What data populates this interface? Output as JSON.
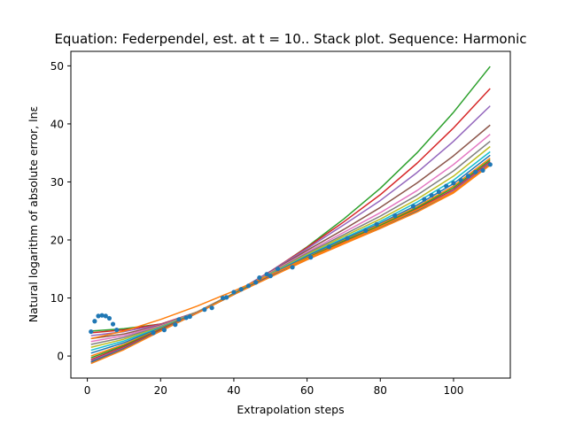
{
  "chart_data": {
    "type": "line",
    "title": "Equation: Federpendel, est. at t = 10.. Stack plot. Sequence: Harmonic",
    "xlabel": "Extrapolation steps",
    "ylabel": "Natural logarithm of absolute error, lnε",
    "xlim": [
      -4.5,
      115.5
    ],
    "ylim": [
      -3.8,
      52.5
    ],
    "xticks": [
      0,
      20,
      40,
      60,
      80,
      100
    ],
    "yticks": [
      0,
      10,
      20,
      30,
      40,
      50
    ],
    "grid": false,
    "legend": "none",
    "scatter": {
      "color": "#1f77b4",
      "x": [
        1,
        2,
        3,
        4,
        5,
        6,
        7,
        8,
        18,
        21,
        24,
        25,
        27,
        28,
        32,
        34,
        37,
        38,
        40,
        42,
        44,
        46,
        47,
        49,
        50,
        52,
        56,
        61,
        66,
        71,
        76,
        79,
        84,
        89,
        92,
        94,
        96,
        98,
        100,
        102,
        104,
        106,
        108,
        110
      ],
      "y": [
        4.2,
        6.0,
        6.9,
        7.0,
        6.9,
        6.5,
        5.5,
        4.5,
        4.0,
        4.5,
        5.4,
        6.3,
        6.6,
        6.8,
        8.0,
        8.3,
        10.0,
        10.1,
        11.0,
        11.5,
        12.1,
        12.7,
        13.5,
        14.1,
        13.8,
        15.0,
        15.3,
        17.0,
        18.8,
        20.3,
        21.6,
        22.7,
        24.2,
        25.8,
        27.0,
        27.7,
        28.3,
        29.3,
        29.8,
        30.3,
        31.0,
        31.7,
        32.0,
        33.0
      ]
    },
    "series": [
      {
        "color": "#2ca02c",
        "x": [
          1,
          10,
          20,
          30,
          40,
          50,
          60,
          70,
          80,
          90,
          100,
          110
        ],
        "y": [
          4.3,
          4.7,
          5.5,
          7.4,
          10.6,
          14.5,
          18.8,
          23.6,
          28.9,
          35.0,
          42.0,
          49.9
        ]
      },
      {
        "color": "#d62728",
        "x": [
          1,
          10,
          20,
          30,
          40,
          50,
          60,
          70,
          80,
          90,
          100,
          110
        ],
        "y": [
          4.0,
          4.5,
          5.5,
          7.6,
          10.8,
          14.6,
          18.7,
          23.1,
          27.8,
          33.2,
          39.3,
          46.1
        ]
      },
      {
        "color": "#9467bd",
        "x": [
          1,
          10,
          20,
          30,
          40,
          50,
          60,
          70,
          80,
          90,
          100,
          110
        ],
        "y": [
          3.5,
          4.2,
          5.4,
          7.6,
          10.8,
          14.6,
          18.5,
          22.6,
          26.8,
          31.6,
          37.0,
          43.1
        ]
      },
      {
        "color": "#8c564b",
        "x": [
          1,
          10,
          20,
          30,
          40,
          50,
          60,
          70,
          80,
          90,
          100,
          110
        ],
        "y": [
          3.0,
          3.8,
          5.3,
          7.6,
          10.8,
          14.5,
          18.2,
          21.8,
          25.6,
          29.8,
          34.5,
          39.8
        ]
      },
      {
        "color": "#e377c2",
        "x": [
          1,
          10,
          20,
          30,
          40,
          50,
          60,
          70,
          80,
          90,
          100,
          110
        ],
        "y": [
          2.5,
          3.5,
          5.2,
          7.6,
          10.8,
          14.4,
          17.9,
          21.3,
          24.7,
          28.5,
          33.0,
          38.2
        ]
      },
      {
        "color": "#7f7f7f",
        "x": [
          1,
          10,
          20,
          30,
          40,
          50,
          60,
          70,
          80,
          90,
          100,
          110
        ],
        "y": [
          2.0,
          3.2,
          5.1,
          7.6,
          10.8,
          14.3,
          17.7,
          20.9,
          24.1,
          27.7,
          31.9,
          37.0
        ]
      },
      {
        "color": "#bcbd22",
        "x": [
          1,
          10,
          20,
          30,
          40,
          50,
          60,
          70,
          80,
          90,
          100,
          110
        ],
        "y": [
          1.5,
          2.9,
          5.0,
          7.6,
          10.7,
          14.2,
          17.5,
          20.6,
          23.6,
          27.0,
          31.0,
          36.1
        ]
      },
      {
        "color": "#17becf",
        "x": [
          1,
          10,
          20,
          30,
          40,
          50,
          60,
          70,
          80,
          90,
          100,
          110
        ],
        "y": [
          1.0,
          2.6,
          4.9,
          7.5,
          10.7,
          14.1,
          17.3,
          20.3,
          23.2,
          26.5,
          30.3,
          35.2
        ]
      },
      {
        "color": "#1f77b4",
        "x": [
          1,
          10,
          20,
          30,
          40,
          50,
          60,
          70,
          80,
          90,
          100,
          110
        ],
        "y": [
          0.5,
          2.3,
          4.8,
          7.5,
          10.7,
          14.0,
          17.2,
          20.1,
          22.9,
          26.0,
          29.7,
          34.6
        ]
      },
      {
        "color": "#ff7f0e",
        "x": [
          1,
          10,
          20,
          30,
          40,
          50,
          60,
          70,
          80,
          90,
          100,
          110
        ],
        "y": [
          0.0,
          2.0,
          4.7,
          7.5,
          10.7,
          13.9,
          17.0,
          19.9,
          22.7,
          25.7,
          29.3,
          34.1
        ]
      },
      {
        "color": "#2ca02c",
        "x": [
          1,
          10,
          20,
          30,
          40,
          50,
          60,
          70,
          80,
          90,
          100,
          110
        ],
        "y": [
          -0.3,
          1.8,
          4.6,
          7.5,
          10.7,
          13.8,
          16.9,
          19.8,
          22.5,
          25.5,
          29.0,
          33.8
        ]
      },
      {
        "color": "#d62728",
        "x": [
          1,
          10,
          20,
          30,
          40,
          50,
          60,
          70,
          80,
          90,
          100,
          110
        ],
        "y": [
          -0.6,
          1.6,
          4.5,
          7.5,
          10.6,
          13.8,
          16.8,
          19.6,
          22.3,
          25.3,
          28.7,
          33.5
        ]
      },
      {
        "color": "#9467bd",
        "x": [
          1,
          10,
          20,
          30,
          40,
          50,
          60,
          70,
          80,
          90,
          100,
          110
        ],
        "y": [
          -0.8,
          1.4,
          4.4,
          7.5,
          10.6,
          13.7,
          16.7,
          19.5,
          22.2,
          25.1,
          28.5,
          33.3
        ]
      },
      {
        "color": "#8c564b",
        "x": [
          1,
          10,
          20,
          30,
          40,
          50,
          60,
          70,
          80,
          90,
          100,
          110
        ],
        "y": [
          -1.0,
          1.3,
          4.4,
          7.4,
          10.6,
          13.7,
          16.7,
          19.4,
          22.1,
          25.0,
          28.3,
          33.1
        ]
      },
      {
        "color": "#1f77b4",
        "x": [
          1,
          10,
          20,
          30,
          40,
          50,
          60,
          70,
          80,
          90,
          100,
          110
        ],
        "y": [
          -1.1,
          1.2,
          4.3,
          7.4,
          10.6,
          13.7,
          16.6,
          19.4,
          22.0,
          24.9,
          28.2,
          33.0
        ]
      },
      {
        "color": "#ff7f0e",
        "x": [
          1,
          10,
          20,
          30,
          40,
          50,
          60,
          70,
          80,
          90,
          100,
          110
        ],
        "y": [
          -1.3,
          1.1,
          4.3,
          7.4,
          10.6,
          13.6,
          16.6,
          19.3,
          22.0,
          24.8,
          28.1,
          32.9
        ]
      },
      {
        "color": "#ff7f0e",
        "x": [
          1,
          10,
          20,
          30,
          40,
          50,
          60,
          70,
          80,
          90,
          100,
          110
        ],
        "y": [
          3.0,
          4.3,
          6.3,
          8.6,
          11.2,
          14.0,
          16.8,
          19.5,
          22.3,
          25.2,
          28.3,
          33.0
        ]
      }
    ]
  }
}
